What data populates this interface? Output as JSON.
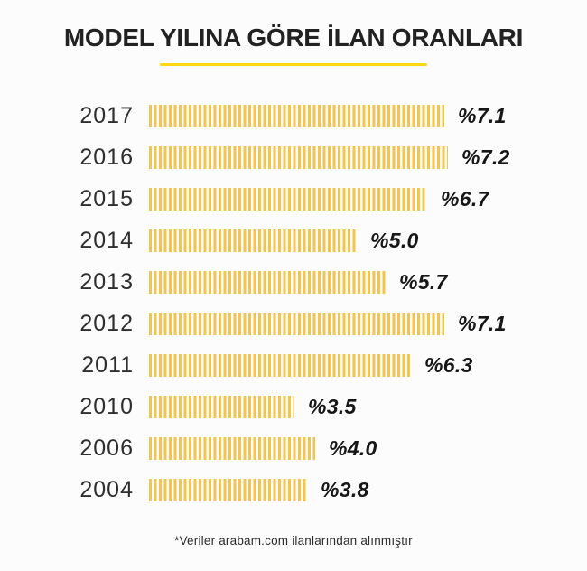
{
  "chart_data": {
    "type": "bar",
    "orientation": "horizontal",
    "title": "MODEL YILINA GÖRE İLAN ORANLARI",
    "categories": [
      "2017",
      "2016",
      "2015",
      "2014",
      "2013",
      "2012",
      "2011",
      "2010",
      "2006",
      "2004"
    ],
    "values": [
      7.1,
      7.2,
      6.7,
      5.0,
      5.7,
      7.1,
      6.3,
      3.5,
      4.0,
      3.8
    ],
    "value_labels": [
      "%7.1",
      "%7.2",
      "%6.7",
      "%5.0",
      "%5.7",
      "%7.1",
      "%6.3",
      "%3.5",
      "%4.0",
      "%3.8"
    ],
    "xlim": [
      0,
      7.5
    ],
    "grid": false,
    "legend": false,
    "bar_style": "vertical-stripes",
    "bar_color": "#F3C54C",
    "accent_color": "#FFD914",
    "title_color": "#222222",
    "text_color": "#2E2E2E",
    "footnote": "*Veriler arabam.com ilanlarından alınmıştır"
  }
}
